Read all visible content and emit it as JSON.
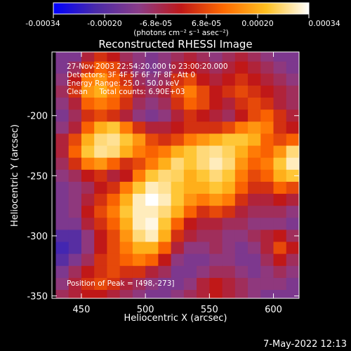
{
  "figure": {
    "date_stamp": "7-May-2022 12:13",
    "colorbar": {
      "ticks": [
        "-0.00034",
        "-0.00020",
        "-6.8e-05",
        "6.8e-05",
        "0.00020",
        "0.00034"
      ],
      "unit_label": "(photons cm⁻² s⁻¹ asec⁻²)",
      "range": [
        -0.00034,
        0.00034
      ],
      "colormap": [
        "#0000ff",
        "#4a2aa8",
        "#8a3c88",
        "#c01818",
        "#ff6a00",
        "#ffc020",
        "#ffffff"
      ]
    }
  },
  "chart_data": {
    "type": "heatmap",
    "title": "Reconstructed RHESSI Image",
    "xlabel": "Heliocentric X (arcsec)",
    "ylabel": "Heliocentric Y (arcsec)",
    "xlim": [
      427,
      620
    ],
    "ylim": [
      -352,
      -147
    ],
    "x_ticks": [
      450,
      500,
      550,
      600
    ],
    "y_ticks": [
      -200,
      -250,
      -300,
      -350
    ],
    "annotations": [
      "27-Nov-2003 22:54:20.000 to 23:00:20.000",
      "Detectors: 3F 4F 5F 6F 7F 8F, Att 0",
      "Energy Range: 25.0 - 50.0 keV",
      "Clean     Total counts: 6.90E+03"
    ],
    "peak_label": "Position of Peak = [498,-273]",
    "peak_position": [
      498,
      -273
    ],
    "total_counts": 6900,
    "energy_range_kev": [
      25.0,
      50.0
    ],
    "grid_x": [
      435,
      445,
      455,
      465,
      475,
      485,
      495,
      505,
      515,
      525,
      535,
      545,
      555,
      565,
      575,
      585,
      595,
      605,
      615
    ],
    "grid_y": [
      -150,
      -160,
      -170,
      -180,
      -190,
      -200,
      -210,
      -220,
      -230,
      -240,
      -250,
      -260,
      -270,
      -280,
      -290,
      -300,
      -310,
      -320,
      -330,
      -340,
      -350
    ],
    "intensity_normalized": [
      [
        0.3,
        0.3,
        0.45,
        0.55,
        0.5,
        0.4,
        0.35,
        0.3,
        0.35,
        0.4,
        0.45,
        0.4,
        0.35,
        0.4,
        0.45,
        0.4,
        0.35,
        0.3,
        0.3
      ],
      [
        0.3,
        0.4,
        0.55,
        0.65,
        0.6,
        0.45,
        0.35,
        0.3,
        0.35,
        0.45,
        0.5,
        0.45,
        0.4,
        0.45,
        0.5,
        0.45,
        0.4,
        0.35,
        0.3
      ],
      [
        0.35,
        0.5,
        0.7,
        0.75,
        0.65,
        0.55,
        0.4,
        0.35,
        0.4,
        0.55,
        0.6,
        0.5,
        0.45,
        0.5,
        0.55,
        0.5,
        0.45,
        0.4,
        0.35
      ],
      [
        0.4,
        0.55,
        0.75,
        0.8,
        0.7,
        0.6,
        0.45,
        0.4,
        0.45,
        0.6,
        0.7,
        0.6,
        0.5,
        0.55,
        0.6,
        0.55,
        0.5,
        0.45,
        0.4
      ],
      [
        0.35,
        0.45,
        0.65,
        0.7,
        0.65,
        0.55,
        0.4,
        0.35,
        0.4,
        0.55,
        0.65,
        0.6,
        0.5,
        0.45,
        0.55,
        0.6,
        0.55,
        0.45,
        0.4
      ],
      [
        0.3,
        0.4,
        0.55,
        0.6,
        0.55,
        0.45,
        0.35,
        0.3,
        0.35,
        0.45,
        0.55,
        0.5,
        0.45,
        0.4,
        0.5,
        0.6,
        0.65,
        0.55,
        0.45
      ],
      [
        0.35,
        0.45,
        0.65,
        0.8,
        0.85,
        0.7,
        0.55,
        0.45,
        0.45,
        0.5,
        0.55,
        0.55,
        0.55,
        0.6,
        0.7,
        0.75,
        0.7,
        0.55,
        0.5
      ],
      [
        0.45,
        0.6,
        0.8,
        0.9,
        0.92,
        0.85,
        0.75,
        0.6,
        0.55,
        0.6,
        0.7,
        0.75,
        0.8,
        0.85,
        0.85,
        0.8,
        0.65,
        0.6,
        0.65
      ],
      [
        0.45,
        0.65,
        0.85,
        0.92,
        0.9,
        0.8,
        0.7,
        0.65,
        0.7,
        0.8,
        0.85,
        0.9,
        0.92,
        0.88,
        0.8,
        0.7,
        0.65,
        0.75,
        0.9
      ],
      [
        0.4,
        0.55,
        0.7,
        0.75,
        0.65,
        0.55,
        0.6,
        0.7,
        0.8,
        0.9,
        0.85,
        0.9,
        0.95,
        0.9,
        0.75,
        0.65,
        0.7,
        0.85,
        0.95
      ],
      [
        0.35,
        0.4,
        0.5,
        0.55,
        0.45,
        0.5,
        0.7,
        0.85,
        0.9,
        0.88,
        0.8,
        0.85,
        0.9,
        0.85,
        0.7,
        0.6,
        0.65,
        0.8,
        0.85
      ],
      [
        0.3,
        0.35,
        0.4,
        0.5,
        0.55,
        0.7,
        0.85,
        0.95,
        0.92,
        0.85,
        0.8,
        0.8,
        0.85,
        0.8,
        0.65,
        0.55,
        0.55,
        0.65,
        0.6
      ],
      [
        0.3,
        0.35,
        0.45,
        0.55,
        0.65,
        0.8,
        0.95,
        1.0,
        0.95,
        0.85,
        0.75,
        0.7,
        0.75,
        0.7,
        0.55,
        0.45,
        0.45,
        0.5,
        0.45
      ],
      [
        0.3,
        0.35,
        0.5,
        0.6,
        0.7,
        0.85,
        0.95,
        0.95,
        0.9,
        0.8,
        0.65,
        0.55,
        0.6,
        0.55,
        0.45,
        0.4,
        0.4,
        0.4,
        0.35
      ],
      [
        0.3,
        0.3,
        0.45,
        0.55,
        0.65,
        0.8,
        0.95,
        0.98,
        0.85,
        0.65,
        0.5,
        0.45,
        0.45,
        0.4,
        0.4,
        0.35,
        0.35,
        0.35,
        0.3
      ],
      [
        0.2,
        0.2,
        0.35,
        0.5,
        0.6,
        0.75,
        0.9,
        0.95,
        0.8,
        0.55,
        0.45,
        0.4,
        0.4,
        0.35,
        0.35,
        0.4,
        0.45,
        0.5,
        0.4
      ],
      [
        0.15,
        0.2,
        0.35,
        0.5,
        0.6,
        0.7,
        0.8,
        0.8,
        0.65,
        0.45,
        0.35,
        0.35,
        0.4,
        0.35,
        0.3,
        0.35,
        0.45,
        0.6,
        0.5
      ],
      [
        0.2,
        0.3,
        0.4,
        0.55,
        0.6,
        0.65,
        0.7,
        0.65,
        0.5,
        0.35,
        0.3,
        0.3,
        0.35,
        0.35,
        0.3,
        0.3,
        0.4,
        0.5,
        0.4
      ],
      [
        0.3,
        0.4,
        0.5,
        0.55,
        0.6,
        0.55,
        0.55,
        0.45,
        0.4,
        0.3,
        0.3,
        0.35,
        0.4,
        0.4,
        0.35,
        0.3,
        0.35,
        0.4,
        0.35
      ],
      [
        0.35,
        0.45,
        0.55,
        0.6,
        0.55,
        0.45,
        0.4,
        0.35,
        0.3,
        0.3,
        0.35,
        0.45,
        0.5,
        0.45,
        0.4,
        0.35,
        0.35,
        0.35,
        0.3
      ],
      [
        0.4,
        0.45,
        0.5,
        0.5,
        0.45,
        0.4,
        0.35,
        0.3,
        0.3,
        0.35,
        0.4,
        0.45,
        0.5,
        0.45,
        0.4,
        0.35,
        0.3,
        0.3,
        0.3
      ]
    ],
    "grid": false
  }
}
